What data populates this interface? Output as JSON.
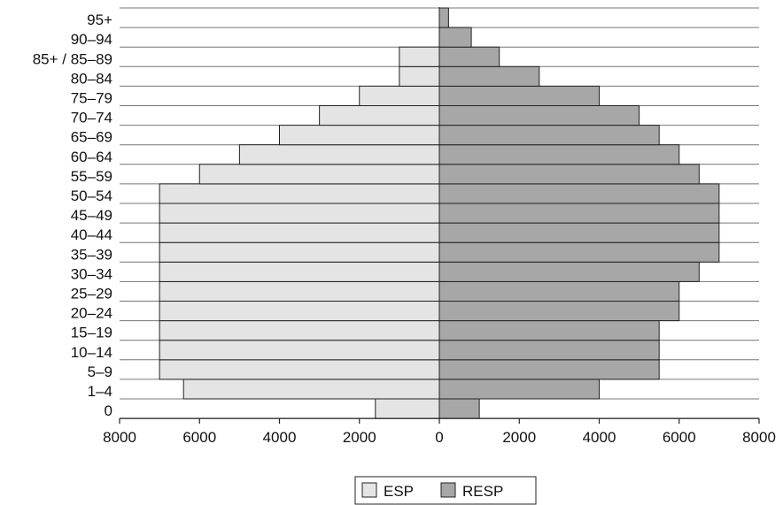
{
  "chart_data": {
    "type": "bar",
    "orientation": "horizontal-pyramid",
    "categories": [
      "0",
      "1–4",
      "5–9",
      "10–14",
      "15–19",
      "20–24",
      "25–29",
      "30–34",
      "35–39",
      "40–44",
      "45–49",
      "50–54",
      "55–59",
      "60–64",
      "65–69",
      "70–74",
      "75–79",
      "80–84",
      "85+ / 85–89",
      "90–94",
      "95+"
    ],
    "series": [
      {
        "name": "ESP",
        "side": "left",
        "color": "#e4e4e4",
        "values": [
          1600,
          6400,
          7000,
          7000,
          7000,
          7000,
          7000,
          7000,
          7000,
          7000,
          7000,
          7000,
          6000,
          5000,
          4000,
          3000,
          2000,
          1000,
          1000,
          null,
          null
        ]
      },
      {
        "name": "RESP",
        "side": "right",
        "color": "#a7a7a7",
        "values": [
          1000,
          4000,
          5500,
          5500,
          5500,
          6000,
          6000,
          6500,
          7000,
          7000,
          7000,
          7000,
          6500,
          6000,
          5500,
          5000,
          4000,
          2500,
          1500,
          800,
          230
        ]
      }
    ],
    "x_ticks": [
      "8000",
      "6000",
      "4000",
      "2000",
      "0",
      "2000",
      "4000",
      "6000",
      "8000"
    ],
    "xlim": [
      -8000,
      8000
    ],
    "grid": "horizontal",
    "legend": {
      "position": "bottom",
      "entries": [
        "ESP",
        "RESP"
      ]
    },
    "title": "",
    "xlabel": "",
    "ylabel": ""
  }
}
